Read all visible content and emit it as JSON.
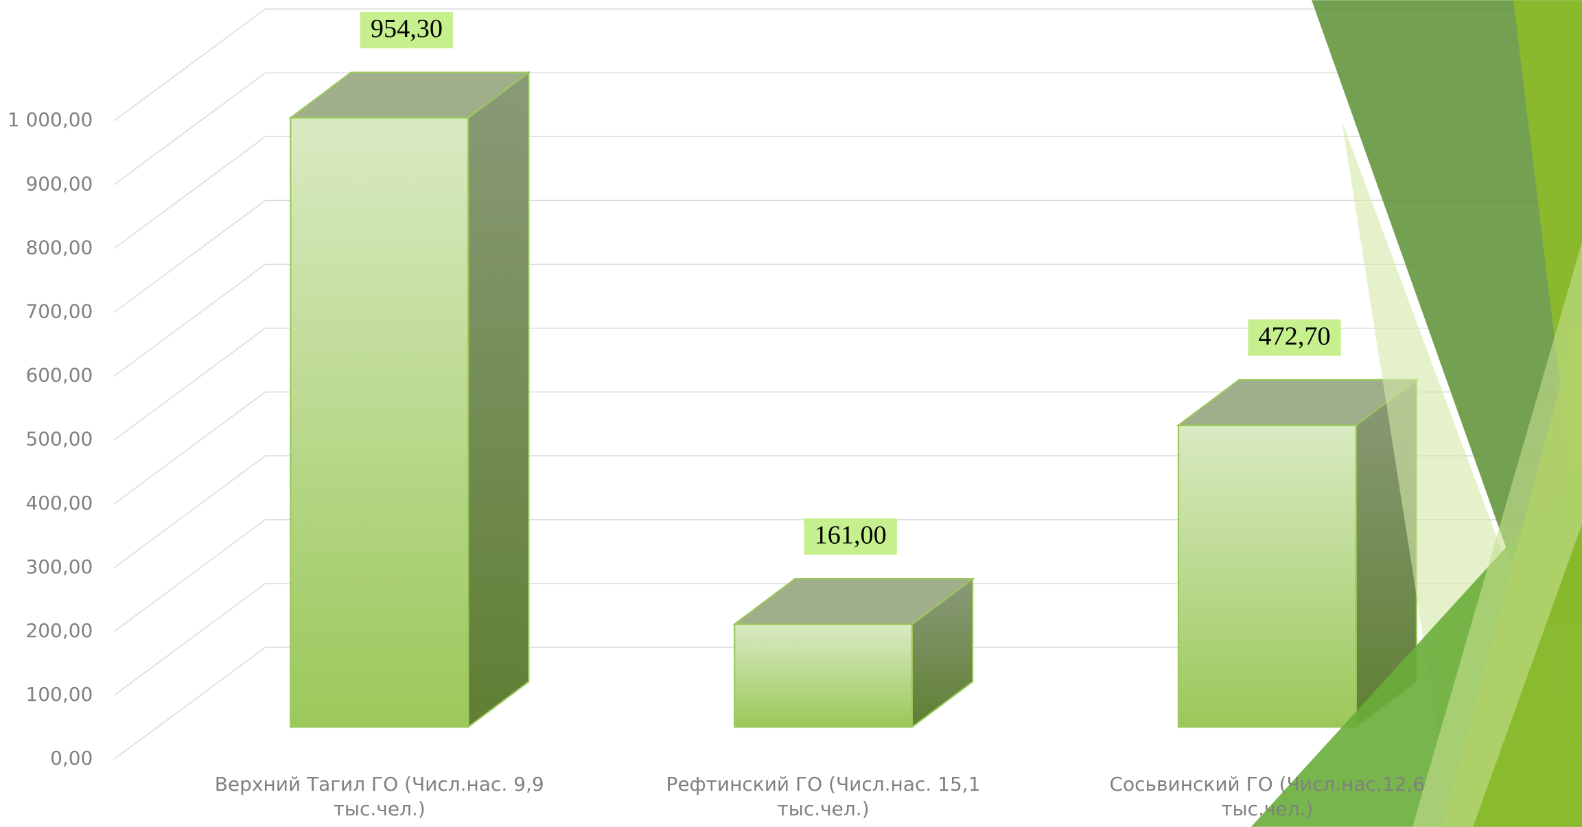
{
  "chart_data": {
    "type": "bar3d",
    "categories": [
      "Верхний Тагил ГО (Числ.нас. 9,9 тыс.чел.)",
      "Рефтинский ГО (Числ.нас. 15,1 тыс.чел.)",
      "Сосьвинский ГО (Числ.нас.12,6 тыс.чел.)"
    ],
    "values": [
      954.3,
      161,
      472.7
    ],
    "value_labels": [
      "954,30",
      "161,00",
      "472,70"
    ],
    "color": "#9bc85a",
    "ylim": [
      0,
      1000
    ],
    "yticks": [
      {
        "value": 0,
        "label": "0,00"
      },
      {
        "value": 100,
        "label": "100,00"
      },
      {
        "value": 200,
        "label": "200,00"
      },
      {
        "value": 300,
        "label": "300,00"
      },
      {
        "value": 400,
        "label": "400,00"
      },
      {
        "value": 500,
        "label": "500,00"
      },
      {
        "value": 600,
        "label": "600,00"
      },
      {
        "value": 700,
        "label": "700,00"
      },
      {
        "value": 800,
        "label": "800,00"
      },
      {
        "value": 900,
        "label": "900,00"
      },
      {
        "value": 1000,
        "label": "1 000,00"
      }
    ],
    "grid": true
  }
}
